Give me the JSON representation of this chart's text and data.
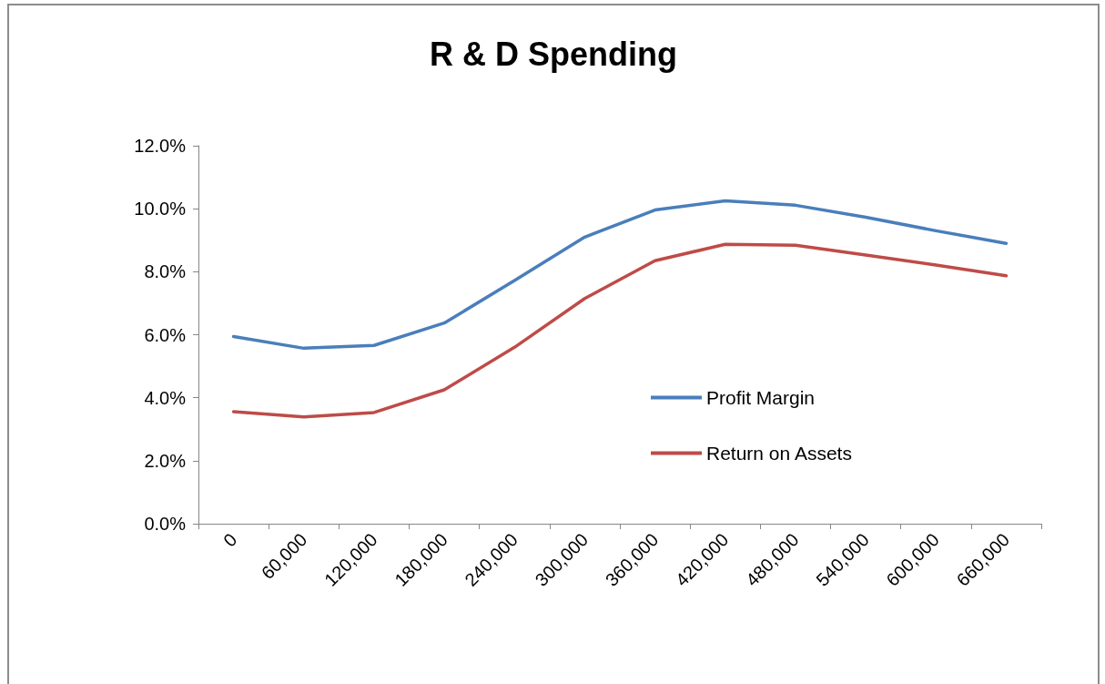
{
  "chart_data": {
    "type": "line",
    "title": "R & D Spending",
    "categories": [
      "0",
      "60,000",
      "120,000",
      "180,000",
      "240,000",
      "300,000",
      "360,000",
      "420,000",
      "480,000",
      "540,000",
      "600,000",
      "660,000"
    ],
    "series": [
      {
        "name": "Profit Margin",
        "color": "#4a7ebb",
        "values": [
          5.94,
          5.57,
          5.66,
          6.37,
          7.72,
          9.1,
          9.96,
          10.25,
          10.11,
          9.73,
          9.3,
          8.9
        ]
      },
      {
        "name": "Return on Assets",
        "color": "#be4b48",
        "values": [
          3.56,
          3.39,
          3.53,
          4.25,
          5.6,
          7.15,
          8.35,
          8.87,
          8.84,
          8.53,
          8.21,
          7.87
        ]
      }
    ],
    "ylim": [
      0,
      12
    ],
    "yticks": [
      {
        "value": 0,
        "label": "0.0%"
      },
      {
        "value": 2,
        "label": "2.0%"
      },
      {
        "value": 4,
        "label": "4.0%"
      },
      {
        "value": 6,
        "label": "6.0%"
      },
      {
        "value": 8,
        "label": "8.0%"
      },
      {
        "value": 10,
        "label": "10.0%"
      },
      {
        "value": 12,
        "label": "12.0%"
      }
    ],
    "grid": false,
    "legend": "right",
    "marker": "none",
    "line_style": "solid"
  }
}
